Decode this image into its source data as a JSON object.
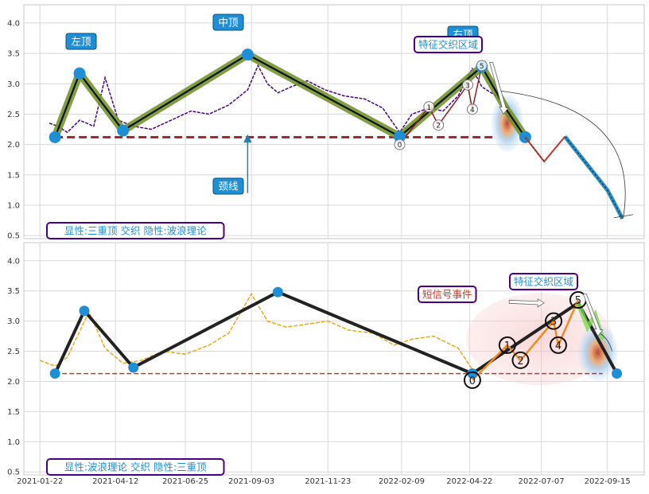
{
  "chart_data": [
    {
      "type": "line",
      "panel": "top",
      "ylim": [
        0.45,
        4.3
      ],
      "yticks": [
        "0.5",
        "1.0",
        "1.5",
        "2.0",
        "2.5",
        "3.0",
        "3.5",
        "4.0"
      ],
      "grid": true,
      "price_series": {
        "color": "#4b0082",
        "x": [
          "2021-02-01",
          "2021-02-10",
          "2021-02-20",
          "2021-03-05",
          "2021-03-20",
          "2021-04-01",
          "2021-04-15",
          "2021-05-01",
          "2021-05-20",
          "2021-06-10",
          "2021-07-01",
          "2021-07-20",
          "2021-08-10",
          "2021-08-30",
          "2021-09-10",
          "2021-09-20",
          "2021-10-01",
          "2021-10-15",
          "2021-11-01",
          "2021-11-20",
          "2021-12-10",
          "2022-01-01",
          "2022-01-20",
          "2022-02-07",
          "2022-02-20",
          "2022-03-10",
          "2022-03-25",
          "2022-04-10",
          "2022-04-25",
          "2022-05-05",
          "2022-05-20",
          "2022-06-01"
        ],
        "y": [
          2.35,
          2.3,
          2.2,
          2.4,
          2.3,
          3.1,
          2.4,
          2.3,
          2.25,
          2.4,
          2.55,
          2.5,
          2.65,
          2.9,
          3.3,
          3.0,
          2.85,
          2.95,
          3.05,
          2.9,
          2.8,
          2.75,
          2.6,
          2.2,
          2.5,
          2.6,
          2.55,
          2.8,
          3.25,
          2.95,
          2.8,
          2.6
        ]
      },
      "pattern_line": {
        "x": [
          "2021-02-07",
          "2021-03-05",
          "2021-04-20",
          "2021-08-30",
          "2022-02-07",
          "2022-05-05",
          "2022-06-01",
          "2022-06-20"
        ],
        "y": [
          2.12,
          3.17,
          2.23,
          3.48,
          2.13,
          3.28,
          2.55,
          2.12
        ]
      },
      "swing_points": {
        "x": [
          "2021-02-07",
          "2021-03-05",
          "2021-04-20",
          "2021-08-30",
          "2022-02-07",
          "2022-05-05",
          "2022-06-20"
        ],
        "y": [
          2.12,
          3.17,
          2.23,
          3.48,
          2.13,
          3.28,
          2.12
        ]
      },
      "wave_points": {
        "labels": [
          "0",
          "1",
          "2",
          "3",
          "4",
          "5"
        ],
        "x": [
          "2022-02-07",
          "2022-03-10",
          "2022-03-20",
          "2022-04-20",
          "2022-04-25",
          "2022-05-05"
        ],
        "y": [
          2.0,
          2.62,
          2.32,
          2.98,
          2.58,
          3.3
        ]
      },
      "neckline": {
        "y": 2.12,
        "x_start": "2021-02-07",
        "x_end": "2022-05-20",
        "color": "#a52a2a"
      },
      "projection": {
        "x": [
          "2022-06-20",
          "2022-07-10",
          "2022-08-01",
          "2022-09-15",
          "2022-10-01"
        ],
        "y": [
          2.12,
          1.72,
          2.13,
          1.25,
          0.78
        ]
      },
      "annotations": {
        "left_top": "左顶",
        "mid_top": "中顶",
        "right_top": "右顶",
        "neckline": "颈线",
        "feature_zone": "特征交织区域",
        "footer": "显性:三重顶 交织 隐性:波浪理论"
      }
    },
    {
      "type": "line",
      "panel": "bottom",
      "ylim": [
        0.45,
        4.3
      ],
      "yticks": [
        "0.5",
        "1.0",
        "1.5",
        "2.0",
        "2.5",
        "3.0",
        "3.5",
        "4.0"
      ],
      "xticks": [
        "2021-01-22",
        "2021-04-12",
        "2021-06-25",
        "2021-09-03",
        "2021-11-23",
        "2022-02-09",
        "2022-04-22",
        "2022-07-07",
        "2022-09-15"
      ],
      "grid": true,
      "price_series": {
        "color": "#e6a817",
        "x": [
          "2021-01-22",
          "2021-02-07",
          "2021-02-20",
          "2021-03-15",
          "2021-04-01",
          "2021-04-20",
          "2021-05-10",
          "2021-06-01",
          "2021-06-25",
          "2021-07-20",
          "2021-08-10",
          "2021-09-03",
          "2021-09-20",
          "2021-10-10",
          "2021-11-01",
          "2021-11-23",
          "2021-12-15",
          "2022-01-10",
          "2022-02-01",
          "2022-02-20",
          "2022-03-15",
          "2022-04-10",
          "2022-04-25"
        ],
        "y": [
          2.35,
          2.25,
          2.4,
          3.15,
          2.55,
          2.3,
          2.35,
          2.5,
          2.45,
          2.6,
          2.8,
          3.45,
          3.0,
          2.9,
          2.95,
          3.0,
          2.85,
          2.8,
          2.6,
          2.7,
          2.75,
          2.55,
          2.2
        ]
      },
      "pattern_line": {
        "x": [
          "2021-02-07",
          "2021-03-10",
          "2021-05-01",
          "2021-10-01",
          "2022-04-25",
          "2022-08-15",
          "2022-09-25"
        ],
        "y": [
          2.13,
          3.17,
          2.23,
          3.48,
          2.13,
          3.3,
          2.13
        ]
      },
      "swing_points": {
        "x": [
          "2021-02-07",
          "2021-03-10",
          "2021-05-01",
          "2021-10-01",
          "2022-04-25",
          "2022-09-25"
        ],
        "y": [
          2.13,
          3.17,
          2.23,
          3.48,
          2.13,
          2.13
        ]
      },
      "wave_points": {
        "labels": [
          "0",
          "1",
          "2",
          "3",
          "4",
          "5"
        ],
        "x": [
          "2022-04-25",
          "2022-06-01",
          "2022-06-15",
          "2022-07-20",
          "2022-07-25",
          "2022-08-15"
        ],
        "y": [
          2.02,
          2.6,
          2.35,
          3.0,
          2.6,
          3.35
        ]
      },
      "neckline": {
        "y": 2.13,
        "x_start": "2021-02-07",
        "x_end": "2022-09-10",
        "color": "#c0392b"
      },
      "annotations": {
        "short_signal": "短信号事件",
        "feature_zone": "特征交织区域",
        "footer": "显性:波浪理论 交织 隐性:三重顶"
      }
    }
  ]
}
